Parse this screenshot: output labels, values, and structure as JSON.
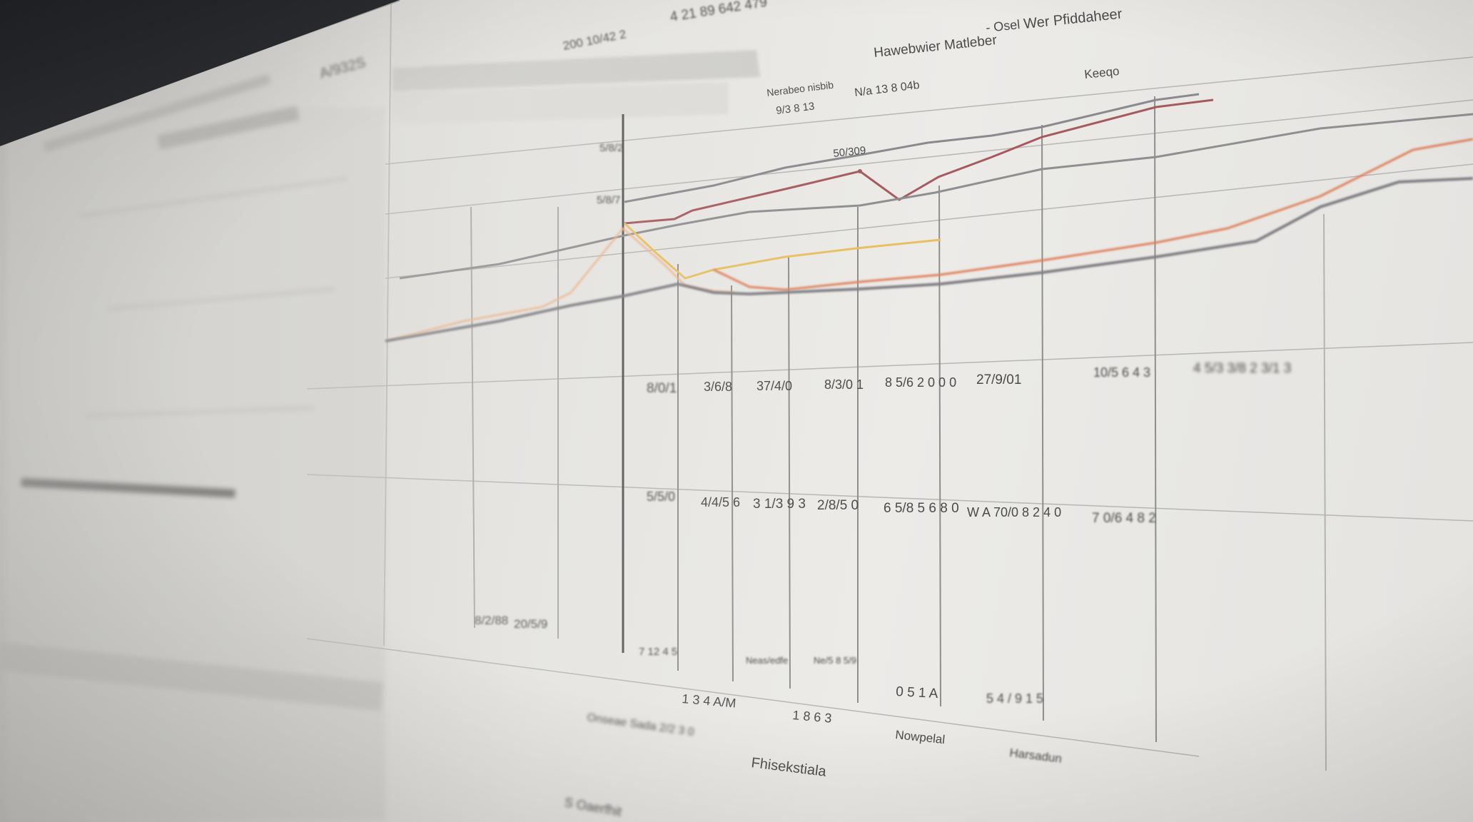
{
  "header": {
    "title_left": "Hawebwier Matleber",
    "title_sep": "- Osel",
    "title_right": "Wer Pfiddaheer",
    "top_numbers": "4 21 89 642 479",
    "top_code": "200 10/42 2",
    "left_value": "A/932S"
  },
  "chart_labels": {
    "legend_a": "Nerabeo nisbib",
    "legend_a_value": "9/3 8 13",
    "legend_b": "N/a 13 8 04b",
    "keep_label": "Keeqo",
    "peak_label": "50/309",
    "axis_a": "5/8/2",
    "axis_b": "5/8/7"
  },
  "table": {
    "row1": [
      "8/0/1",
      "3/6/8",
      "37/4/0",
      "8/3/0 1",
      "8 5/6 2 0 0 0",
      "27/9/01",
      "10/5 6 4 3",
      "4 5/3 3/8 2 3/1 3"
    ],
    "row2": [
      "5/5/0",
      "4/4/5 6",
      "3 1/3 9 3",
      "2/8/5 0",
      "6 5/8 5 6 8 0",
      "W A 70/0 8 2 4 0",
      "7 0/6 4 8 2"
    ],
    "left_labels": [
      "8/2/88",
      "20/5/9",
      "7 12 4 5"
    ]
  },
  "footer": {
    "label_1": "1 3 4 A/M",
    "label_2": "1 8 6 3",
    "label_3": "0 5 1 A",
    "label_4": "5 4 / 9 1 5",
    "label_5": "Neas/edfe",
    "label_6": "Ne/5 8 5/9",
    "label_7": "Nowpelal",
    "label_8": "Fhisekstiala",
    "label_9": "Harsadun",
    "label_10": "Onseae Sada 2/2 3 0",
    "label_11": "S Oaerfhit"
  },
  "colors": {
    "series_red": "#a65a5e",
    "series_orange": "#e0805a",
    "series_yellow": "#e8c060",
    "series_peach": "#f0b58a",
    "series_gray": "#8a8a8e"
  }
}
